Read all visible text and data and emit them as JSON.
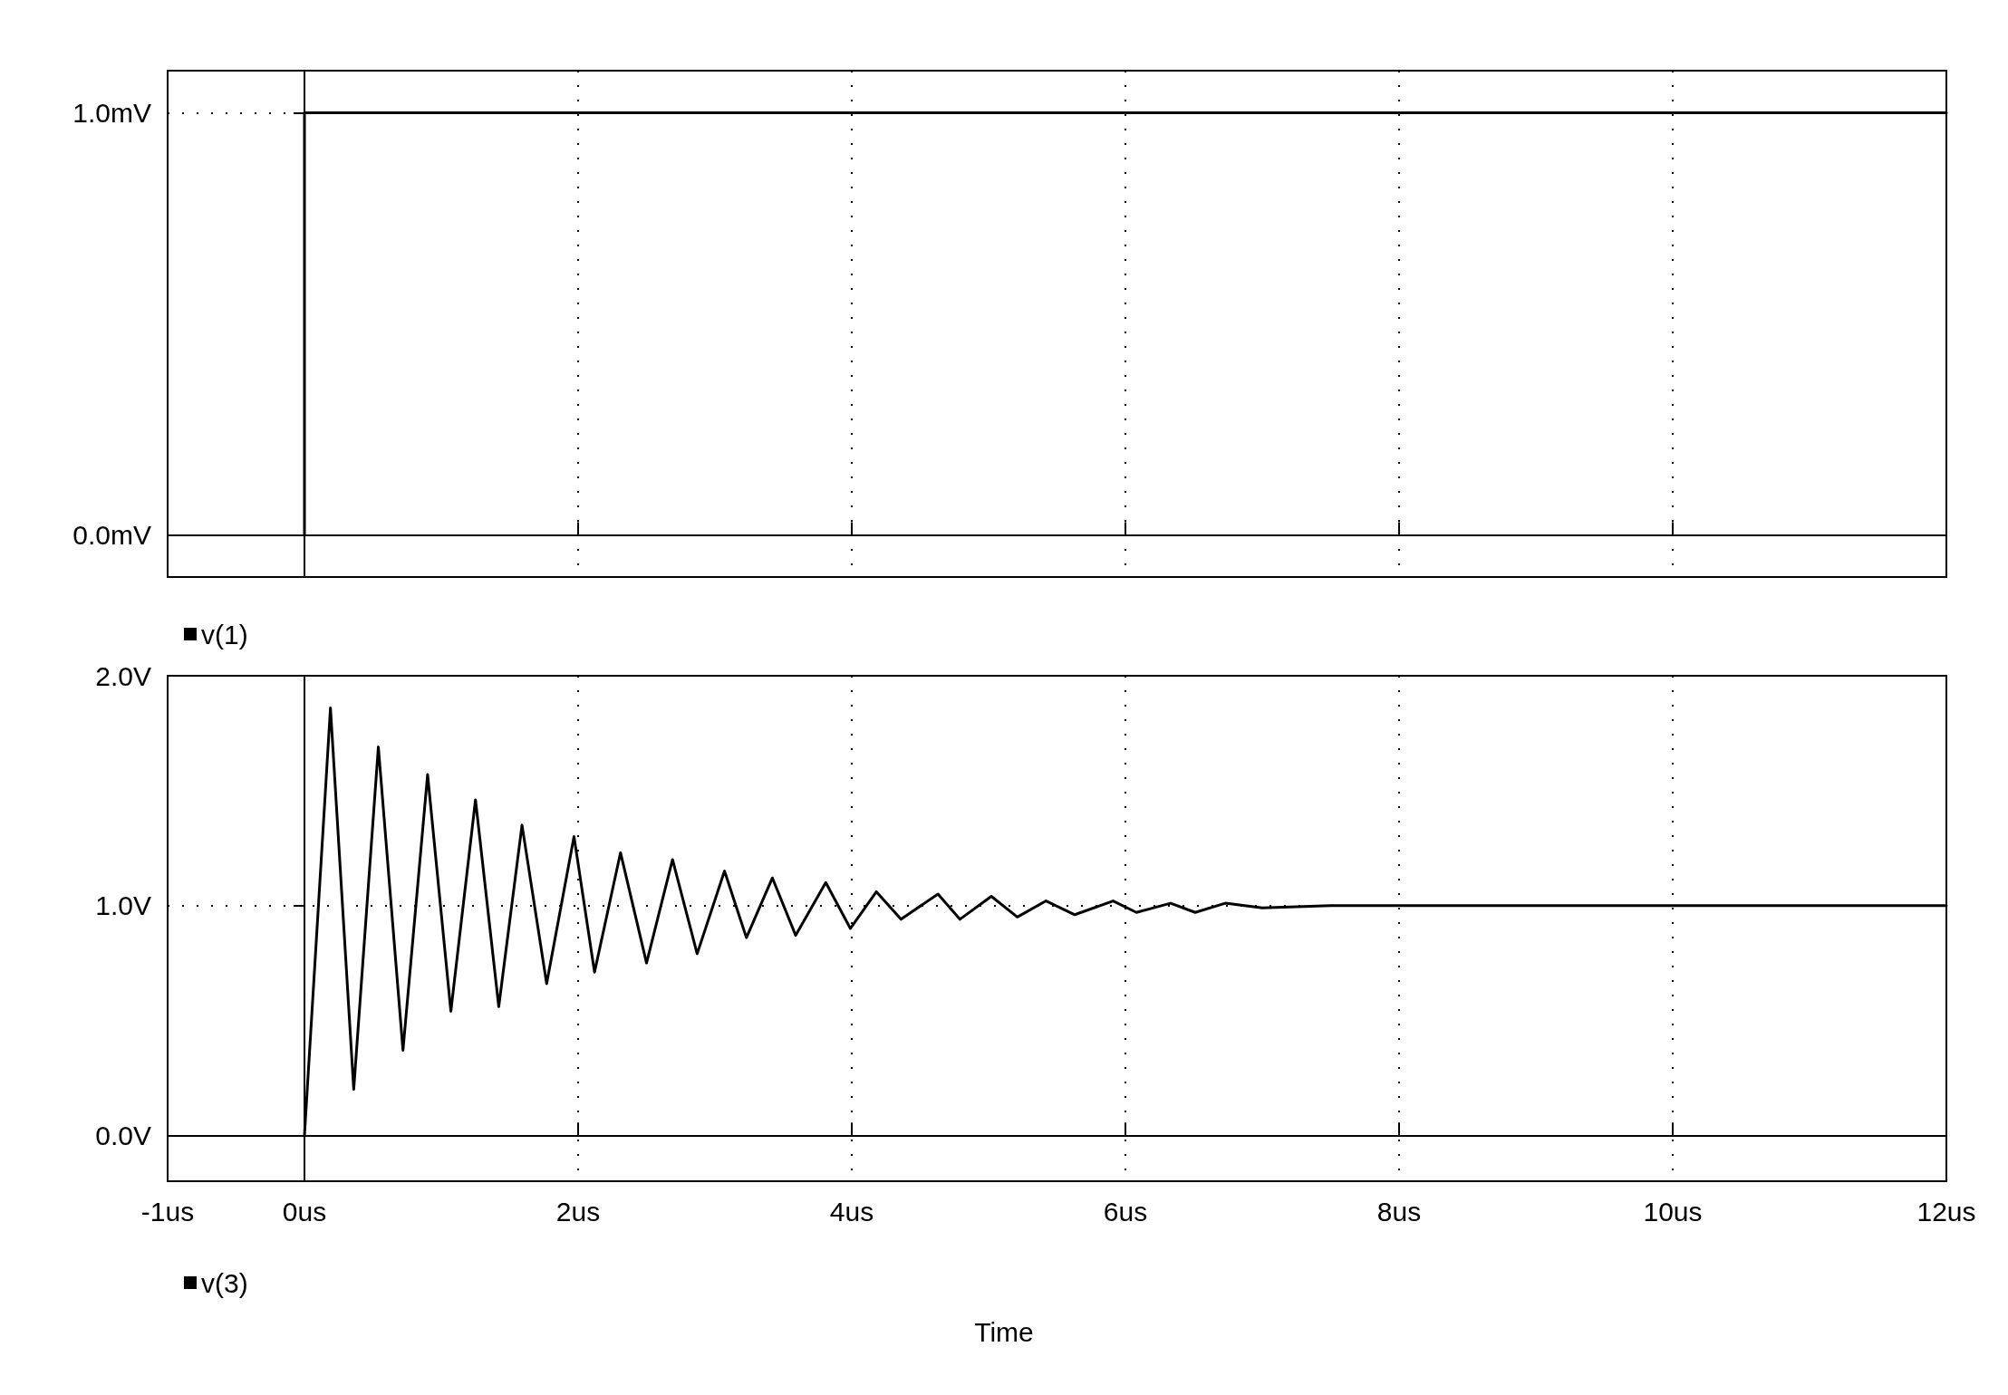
{
  "chart_data": [
    {
      "type": "line",
      "x": [
        0,
        0,
        12
      ],
      "series": [
        {
          "name": "v(1)",
          "color": "#000000",
          "values": [
            0,
            1,
            1
          ]
        }
      ],
      "xlim": [
        -1,
        12
      ],
      "xticks": [
        -1,
        0,
        2,
        4,
        6,
        8,
        10,
        12
      ],
      "ylim": [
        -0.1,
        1.1
      ],
      "yticks": [
        {
          "value": 0,
          "label": "0.0mV"
        },
        {
          "value": 1,
          "label": "1.0mV"
        }
      ],
      "tick_labels": "y",
      "grid": true,
      "legend": "bottom left",
      "marker": "none",
      "line_style": "solid"
    },
    {
      "type": "line",
      "xlabel": "Time",
      "x": [
        0,
        0.19,
        0.36,
        0.54,
        0.72,
        0.9,
        1.07,
        1.25,
        1.42,
        1.59,
        1.77,
        1.97,
        2.12,
        2.31,
        2.5,
        2.69,
        2.87,
        3.07,
        3.23,
        3.42,
        3.59,
        3.81,
        3.99,
        4.18,
        4.36,
        4.63,
        4.79,
        5.02,
        5.21,
        5.42,
        5.63,
        5.91,
        6.08,
        6.33,
        6.51,
        6.73,
        7,
        7.5,
        8,
        9,
        10,
        12
      ],
      "series": [
        {
          "name": "v(3)",
          "color": "#000000",
          "values": [
            0,
            1.86,
            0.2,
            1.69,
            0.37,
            1.57,
            0.54,
            1.46,
            0.56,
            1.35,
            0.66,
            1.3,
            0.71,
            1.23,
            0.75,
            1.2,
            0.79,
            1.15,
            0.86,
            1.12,
            0.87,
            1.1,
            0.9,
            1.06,
            0.94,
            1.05,
            0.94,
            1.04,
            0.95,
            1.02,
            0.96,
            1.02,
            0.97,
            1.01,
            0.97,
            1.01,
            0.99,
            1,
            1,
            1,
            1,
            1
          ]
        }
      ],
      "xlim": [
        -1,
        12
      ],
      "xticks": [
        {
          "value": -1,
          "label": "-1us"
        },
        {
          "value": 0,
          "label": "0us"
        },
        {
          "value": 2,
          "label": "2us"
        },
        {
          "value": 4,
          "label": "4us"
        },
        {
          "value": 6,
          "label": "6us"
        },
        {
          "value": 8,
          "label": "8us"
        },
        {
          "value": 10,
          "label": "10us"
        },
        {
          "value": 12,
          "label": "12us"
        }
      ],
      "ylim": [
        -0.2,
        2.0
      ],
      "yticks": [
        {
          "value": 0,
          "label": "0.0V"
        },
        {
          "value": 1,
          "label": "1.0V"
        },
        {
          "value": 2,
          "label": "2.0V"
        }
      ],
      "grid": true,
      "legend": "bottom left",
      "marker": "none",
      "line_style": "solid"
    }
  ]
}
